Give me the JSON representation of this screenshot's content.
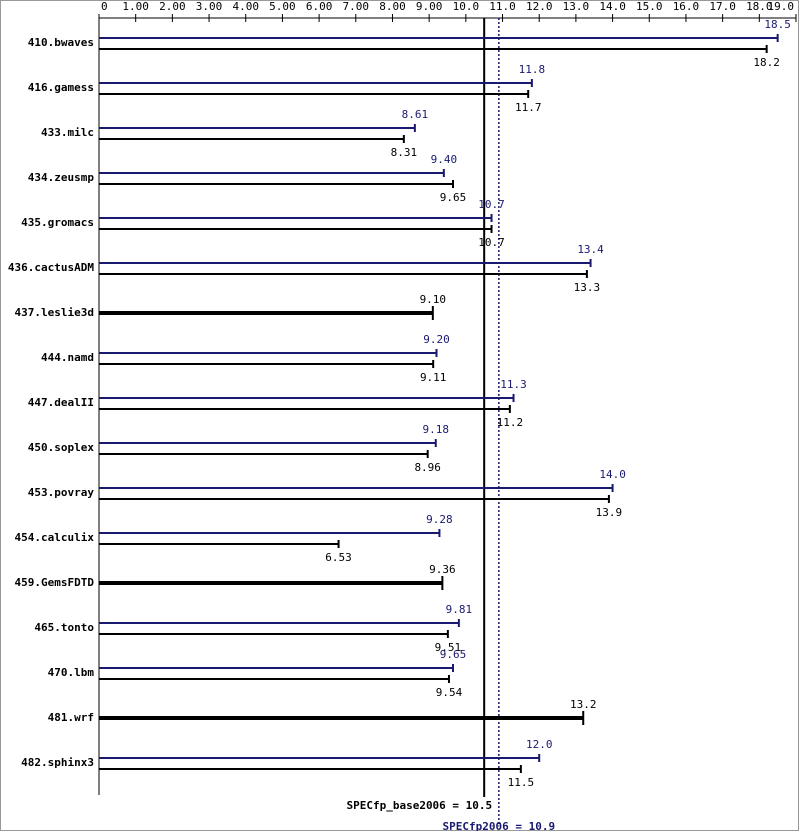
{
  "chart_data": {
    "type": "bar",
    "orientation": "horizontal",
    "categories": [
      "410.bwaves",
      "416.gamess",
      "433.milc",
      "434.zeusmp",
      "435.gromacs",
      "436.cactusADM",
      "437.leslie3d",
      "444.namd",
      "447.dealII",
      "450.soplex",
      "453.povray",
      "454.calculix",
      "459.GemsFDTD",
      "465.tonto",
      "470.lbm",
      "481.wrf",
      "482.sphinx3"
    ],
    "series": [
      {
        "color": "#191970",
        "values": [
          18.5,
          11.8,
          8.61,
          9.4,
          10.7,
          13.4,
          null,
          9.2,
          11.3,
          9.18,
          14.0,
          9.28,
          null,
          9.81,
          9.65,
          null,
          12.0
        ],
        "value_labels": [
          "18.5",
          "11.8",
          "8.61",
          "9.40",
          "10.7",
          "13.4",
          null,
          "9.20",
          "11.3",
          "9.18",
          "14.0",
          "9.28",
          null,
          "9.81",
          "9.65",
          null,
          "12.0"
        ]
      },
      {
        "color": "#000000",
        "values": [
          18.2,
          11.7,
          8.31,
          9.65,
          10.7,
          13.3,
          9.1,
          9.11,
          11.2,
          8.96,
          13.9,
          6.53,
          9.36,
          9.51,
          9.54,
          13.2,
          11.5
        ],
        "value_labels": [
          "18.2",
          "11.7",
          "8.31",
          "9.65",
          "10.7",
          "13.3",
          "9.10",
          "9.11",
          "11.2",
          "8.96",
          "13.9",
          "6.53",
          "9.36",
          "9.51",
          "9.54",
          "13.2",
          "11.5"
        ]
      }
    ],
    "xlim": [
      0,
      19
    ],
    "xticks": [
      0,
      {
        "value": 1,
        "label": "1.00"
      },
      {
        "value": 2,
        "label": "2.00"
      },
      {
        "value": 3,
        "label": "3.00"
      },
      {
        "value": 4,
        "label": "4.00"
      },
      {
        "value": 5,
        "label": "5.00"
      },
      {
        "value": 6,
        "label": "6.00"
      },
      {
        "value": 7,
        "label": "7.00"
      },
      {
        "value": 8,
        "label": "8.00"
      },
      {
        "value": 9,
        "label": "9.00"
      },
      {
        "value": 10,
        "label": "10.0"
      },
      {
        "value": 11,
        "label": "11.0"
      },
      {
        "value": 12,
        "label": "12.0"
      },
      {
        "value": 13,
        "label": "13.0"
      },
      {
        "value": 14,
        "label": "14.0"
      },
      {
        "value": 15,
        "label": "15.0"
      },
      {
        "value": 16,
        "label": "16.0"
      },
      {
        "value": 17,
        "label": "17.0"
      },
      {
        "value": 18,
        "label": "18.0"
      },
      {
        "value": 19,
        "label": "19.0"
      }
    ],
    "reference_lines": [
      {
        "label": "SPECfp_base2006 = 10.5",
        "value": 10.5,
        "color": "#000000",
        "style": "solid"
      },
      {
        "label": "SPECfp2006 = 10.9",
        "value": 10.9,
        "color": "#191970",
        "style": "dotted"
      }
    ]
  }
}
